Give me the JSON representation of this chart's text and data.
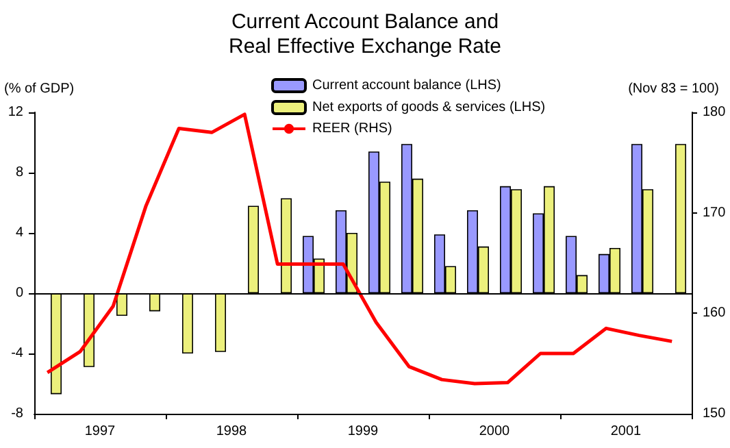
{
  "chart_data": {
    "type": "bar",
    "title": "Current Account Balance and\nReal Effective Exchange Rate",
    "ylabel": "(% of GDP)",
    "y2label": "(Nov 83 = 100)",
    "x": [
      1997.125,
      1997.375,
      1997.625,
      1997.875,
      1998.125,
      1998.375,
      1998.625,
      1998.875,
      1999.125,
      1999.375,
      1999.625,
      1999.875,
      2000.125,
      2000.375,
      2000.625,
      2000.875,
      2001.125,
      2001.375,
      2001.625,
      2001.875
    ],
    "series": [
      {
        "name": "Current account balance (LHS)",
        "color": "#9999ff",
        "values": [
          null,
          null,
          null,
          null,
          null,
          null,
          null,
          null,
          3.8,
          5.5,
          9.4,
          9.9,
          3.9,
          5.5,
          7.1,
          5.3,
          3.8,
          2.6,
          9.9,
          null
        ]
      },
      {
        "name": "Net exports of goods & services (LHS)",
        "color": "#ecf07c",
        "values": [
          -6.7,
          -4.9,
          -1.5,
          -1.2,
          -4.0,
          -3.9,
          5.8,
          6.3,
          2.3,
          4.0,
          7.4,
          7.6,
          1.8,
          3.1,
          6.9,
          7.1,
          1.2,
          3.0,
          6.9,
          9.9
        ]
      },
      {
        "name": "REER (RHS)",
        "type": "line",
        "axis": "y2",
        "color": "#ff0000",
        "x": [
          1997.1,
          1997.35,
          1997.6,
          1997.85,
          1998.1,
          1998.35,
          1998.6,
          1998.85,
          1999.1,
          1999.35,
          1999.6,
          1999.85,
          2000.1,
          2000.35,
          2000.6,
          2000.85,
          2001.1,
          2001.35,
          2001.6,
          2001.85
        ],
        "values": [
          154.1,
          156.2,
          160.7,
          170.7,
          178.4,
          178.0,
          179.8,
          164.9,
          164.9,
          164.9,
          159.1,
          154.7,
          153.4,
          153.0,
          153.1,
          156.0,
          156.0,
          158.5,
          157.8,
          157.2
        ]
      }
    ],
    "xlim": [
      1997,
      2002
    ],
    "xticks": [
      {
        "value": 1997,
        "label": null
      },
      {
        "value": 1997.5,
        "label": "1997"
      },
      {
        "value": 1998,
        "label": null
      },
      {
        "value": 1998.5,
        "label": "1998"
      },
      {
        "value": 1999,
        "label": null
      },
      {
        "value": 1999.5,
        "label": "1999"
      },
      {
        "value": 2000,
        "label": null
      },
      {
        "value": 2000.5,
        "label": "2000"
      },
      {
        "value": 2001,
        "label": null
      },
      {
        "value": 2001.5,
        "label": "2001"
      },
      {
        "value": 2002,
        "label": null
      }
    ],
    "ylim": [
      -8,
      12
    ],
    "yticks": [
      -8,
      -4,
      0,
      4,
      8,
      12
    ],
    "y2lim": [
      150,
      180
    ],
    "y2ticks": [
      150,
      160,
      170,
      180
    ],
    "ref_lines": [
      {
        "axis": "y",
        "value": 0,
        "color": "#000000"
      }
    ],
    "grid": false,
    "legend": "top",
    "marker": "none",
    "line_style": "solid"
  }
}
